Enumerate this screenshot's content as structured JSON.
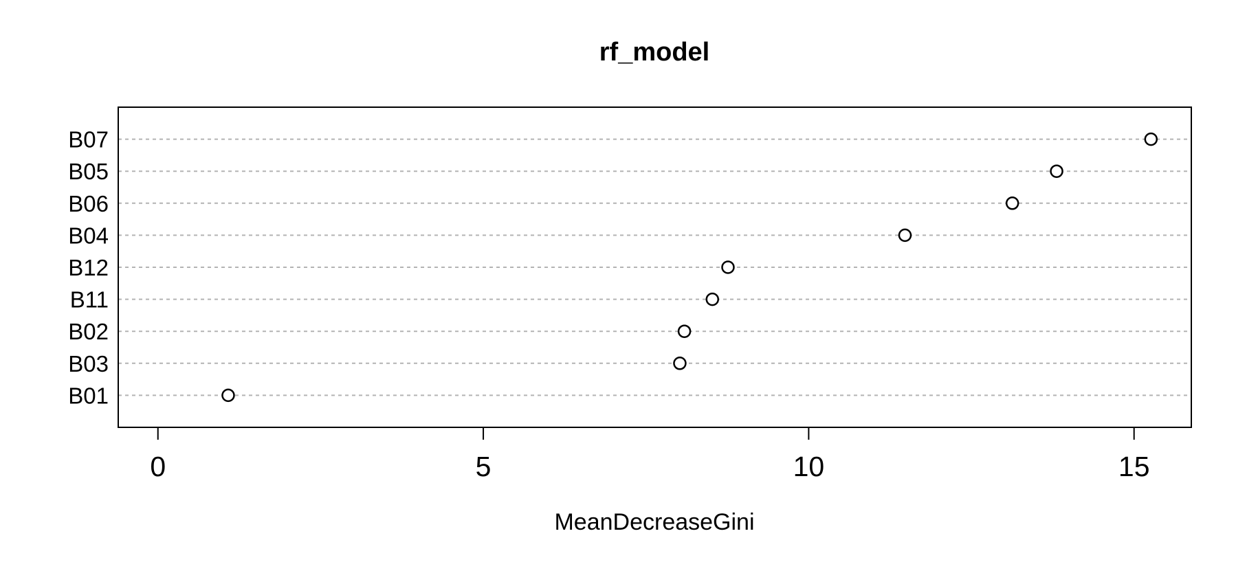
{
  "figure": {
    "title": "rf_model",
    "xlabel": "MeanDecreaseGini"
  },
  "chart_data": {
    "type": "scatter",
    "variant": "dotchart-horizontal",
    "title": "rf_model",
    "xlabel": "MeanDecreaseGini",
    "ylabel": "",
    "categories": [
      "B07",
      "B05",
      "B06",
      "B04",
      "B12",
      "B11",
      "B02",
      "B03",
      "B01"
    ],
    "values": [
      15.26,
      13.81,
      13.13,
      11.48,
      8.76,
      8.52,
      8.09,
      8.02,
      1.08
    ],
    "xticks": [
      0,
      5,
      10,
      15
    ],
    "xlim": [
      -0.61,
      15.88
    ],
    "grid": "horizontal-dashed",
    "legend": "none",
    "point_style": {
      "shape": "open-circle",
      "stroke_color": "#000000",
      "fill": "#ffffff"
    },
    "colors": {
      "background": "#ffffff",
      "text": "#000000",
      "box_border": "#000000",
      "gridline": "#b3b3b3"
    }
  }
}
